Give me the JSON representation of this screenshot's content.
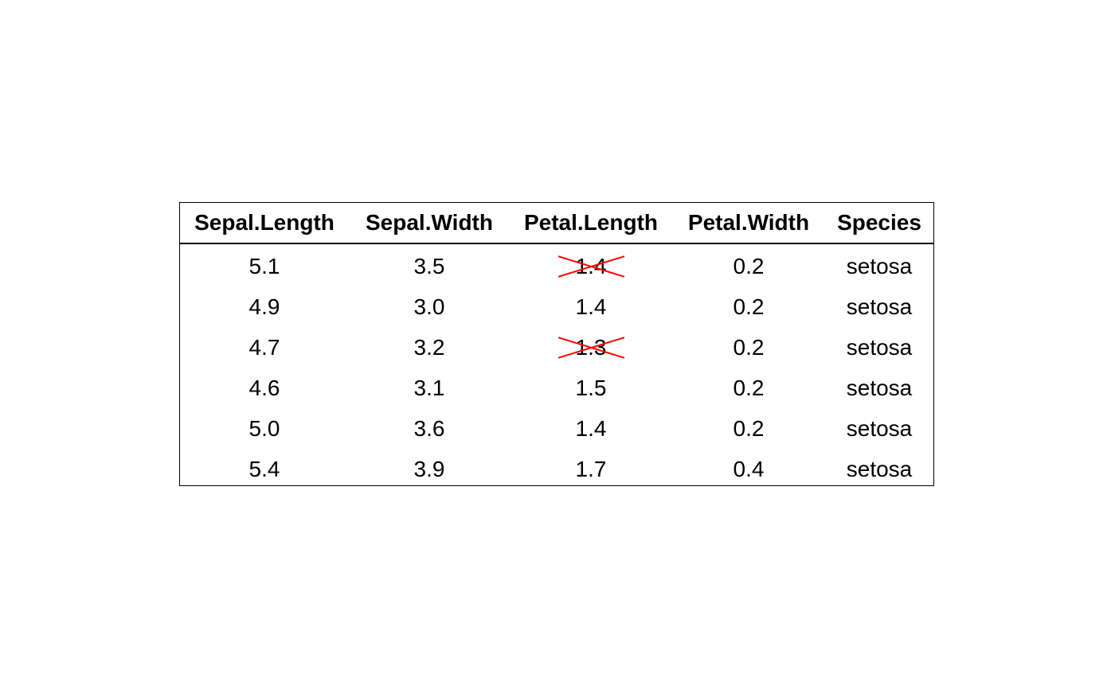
{
  "chart_data": {
    "type": "table",
    "columns": [
      "Sepal.Length",
      "Sepal.Width",
      "Petal.Length",
      "Petal.Width",
      "Species"
    ],
    "rows": [
      [
        "5.1",
        "3.5",
        "1.4",
        "0.2",
        "setosa"
      ],
      [
        "4.9",
        "3.0",
        "1.4",
        "0.2",
        "setosa"
      ],
      [
        "4.7",
        "3.2",
        "1.3",
        "0.2",
        "setosa"
      ],
      [
        "4.6",
        "3.1",
        "1.5",
        "0.2",
        "setosa"
      ],
      [
        "5.0",
        "3.6",
        "1.4",
        "0.2",
        "setosa"
      ],
      [
        "5.4",
        "3.9",
        "1.7",
        "0.4",
        "setosa"
      ]
    ],
    "struck_cells": [
      {
        "row": 0,
        "col": 2
      },
      {
        "row": 2,
        "col": 2
      }
    ],
    "strike_color": "#ff0000"
  }
}
